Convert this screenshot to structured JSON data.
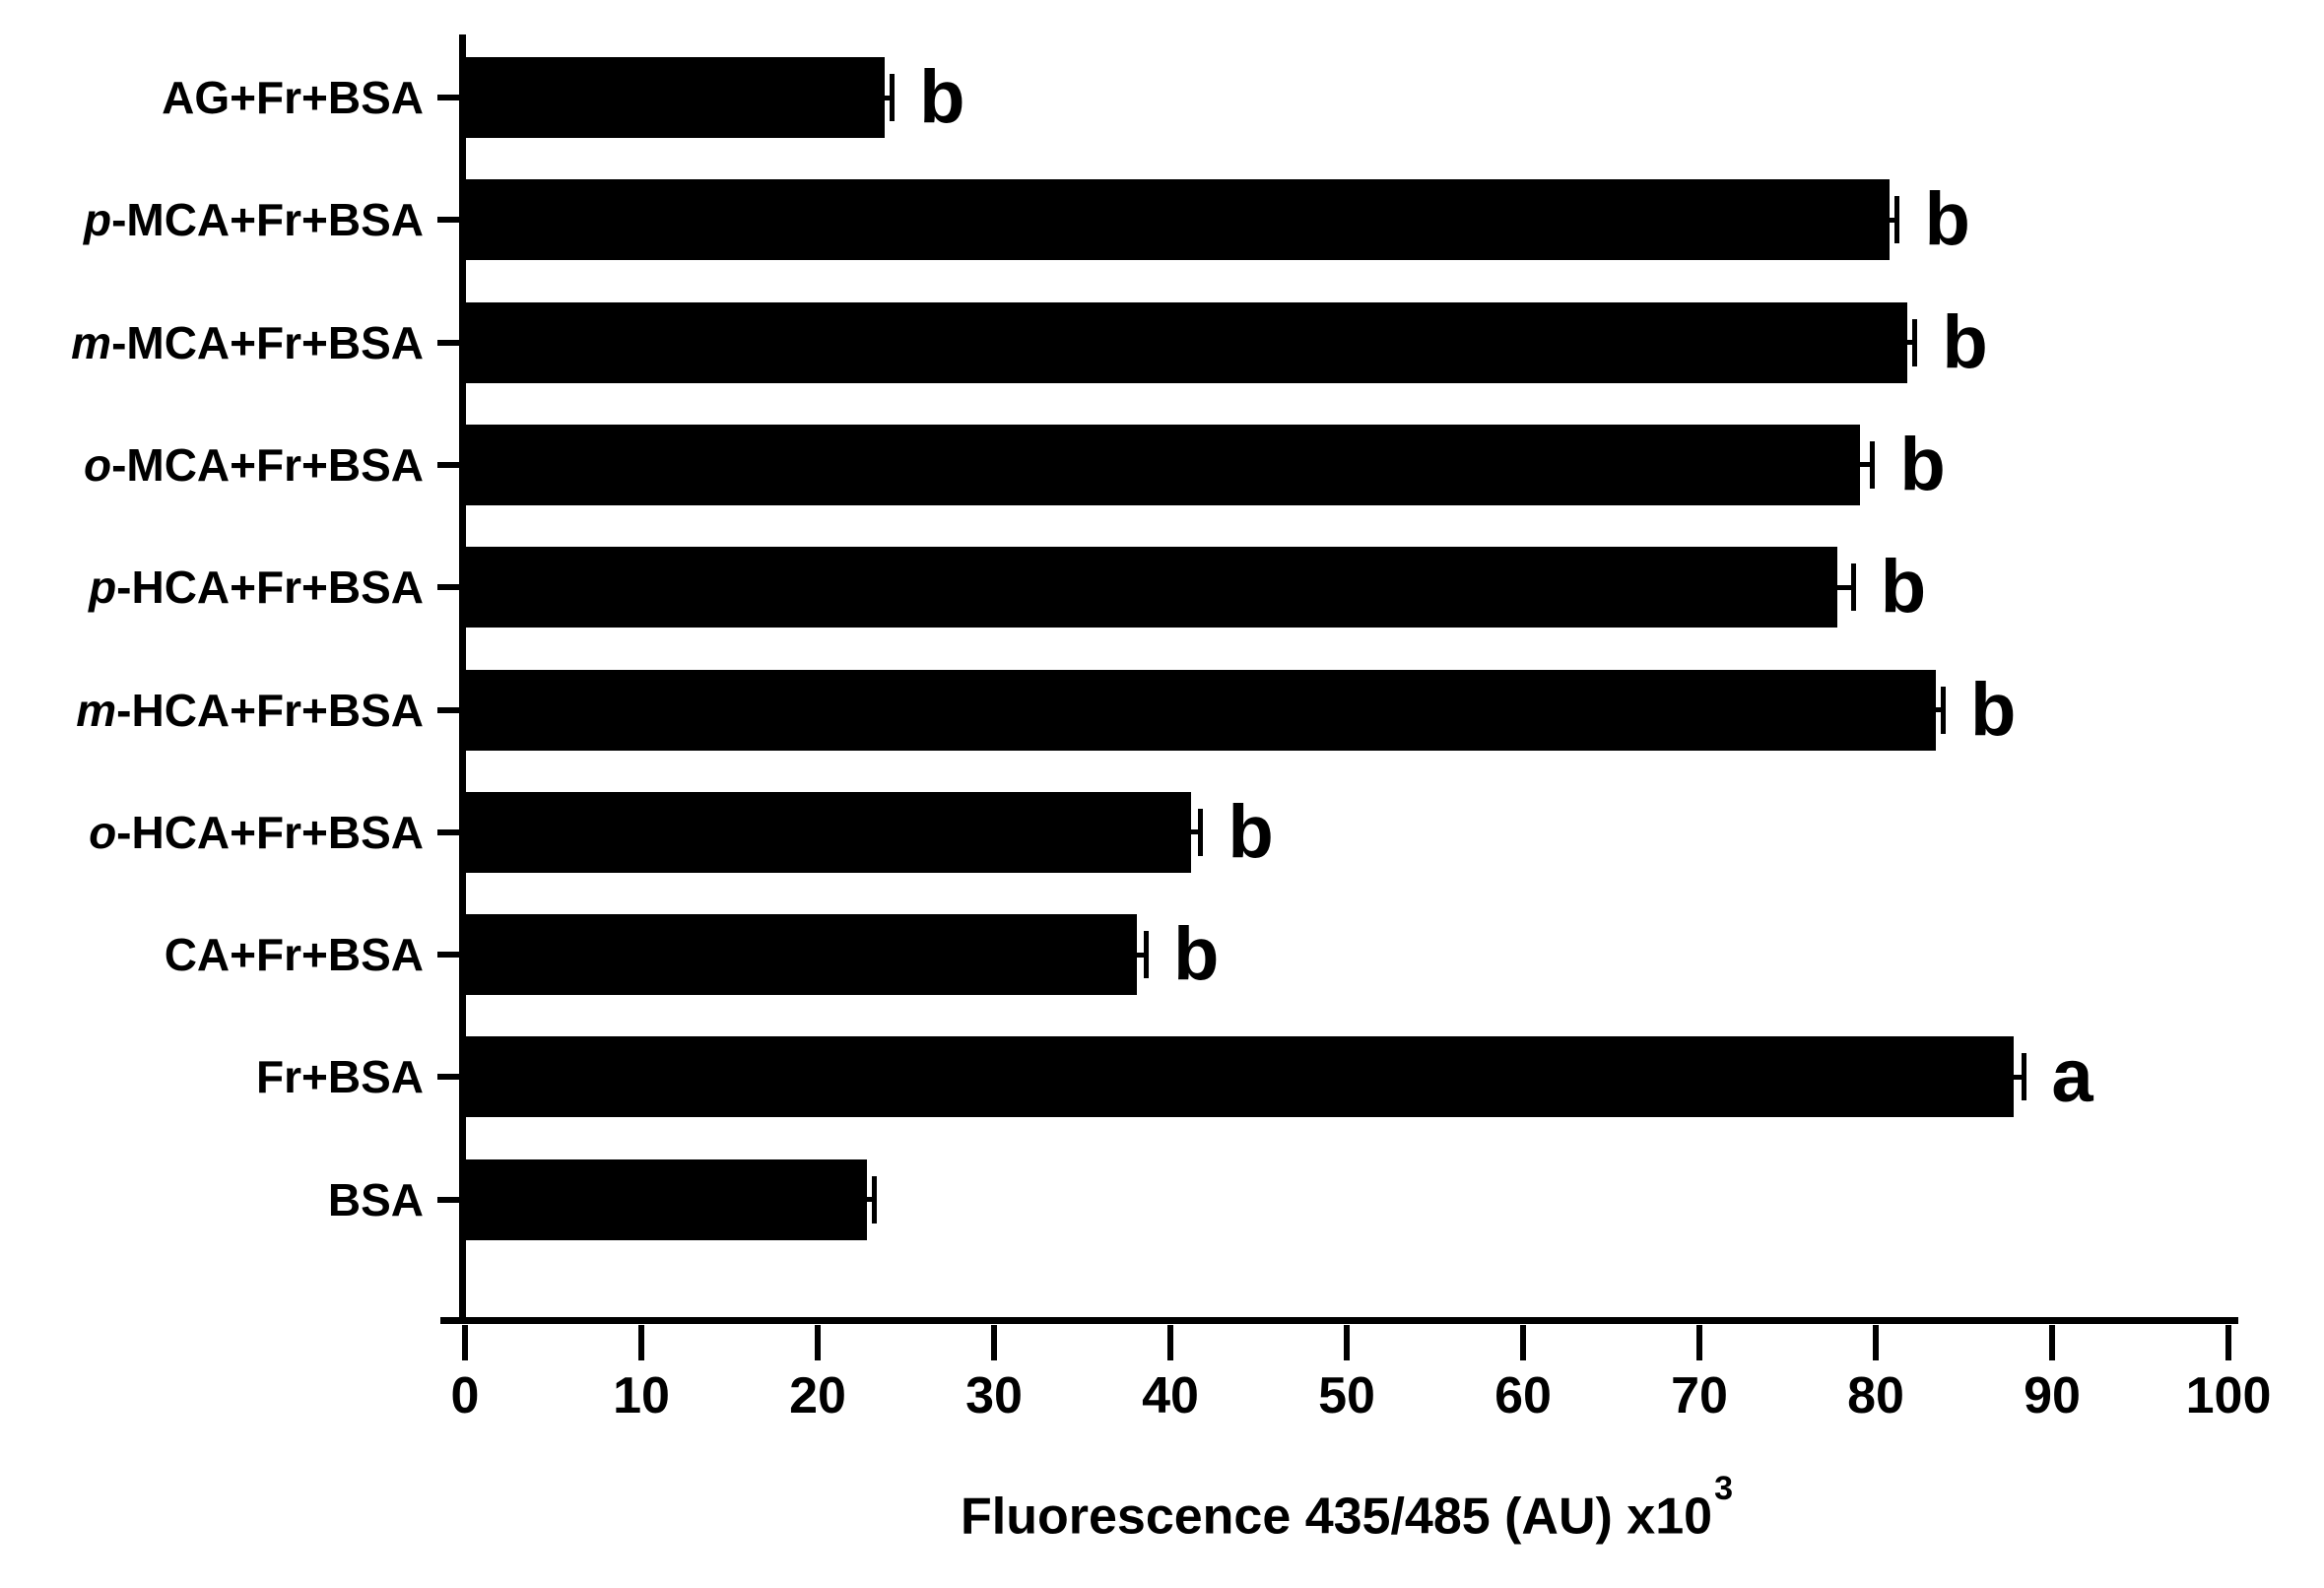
{
  "chart_data": {
    "type": "bar",
    "orientation": "horizontal",
    "title": "",
    "xlabel": "Fluorescence 435/485 (AU) x10",
    "xlabel_superscript": "3",
    "ylabel": "",
    "xlim": [
      0,
      100
    ],
    "xticks": [
      0,
      10,
      20,
      30,
      40,
      50,
      60,
      70,
      80,
      90,
      100
    ],
    "grid": false,
    "legend": false,
    "bar_color": "#000000",
    "axis_color": "#000000",
    "background_color": "#ffffff",
    "error_bars": true,
    "categories": [
      {
        "italic": "",
        "rest": "AG+Fr+BSA"
      },
      {
        "italic": "p",
        "rest": "-MCA+Fr+BSA"
      },
      {
        "italic": "m",
        "rest": "-MCA+Fr+BSA"
      },
      {
        "italic": "o",
        "rest": "-MCA+Fr+BSA"
      },
      {
        "italic": "p",
        "rest": "-HCA+Fr+BSA"
      },
      {
        "italic": "m",
        "rest": "-HCA+Fr+BSA"
      },
      {
        "italic": "o",
        "rest": "-HCA+Fr+BSA"
      },
      {
        "italic": "",
        "rest": "CA+Fr+BSA"
      },
      {
        "italic": "",
        "rest": "Fr+BSA"
      },
      {
        "italic": "",
        "rest": "BSA"
      }
    ],
    "values": [
      23.8,
      80.8,
      81.8,
      79.1,
      77.8,
      83.4,
      41.2,
      38.1,
      87.8,
      22.8
    ],
    "errors": [
      0.4,
      0.4,
      0.4,
      0.7,
      0.9,
      0.4,
      0.5,
      0.5,
      0.6,
      0.4
    ],
    "sig_letters": [
      "b",
      "b",
      "b",
      "b",
      "b",
      "b",
      "b",
      "b",
      "a",
      ""
    ]
  }
}
